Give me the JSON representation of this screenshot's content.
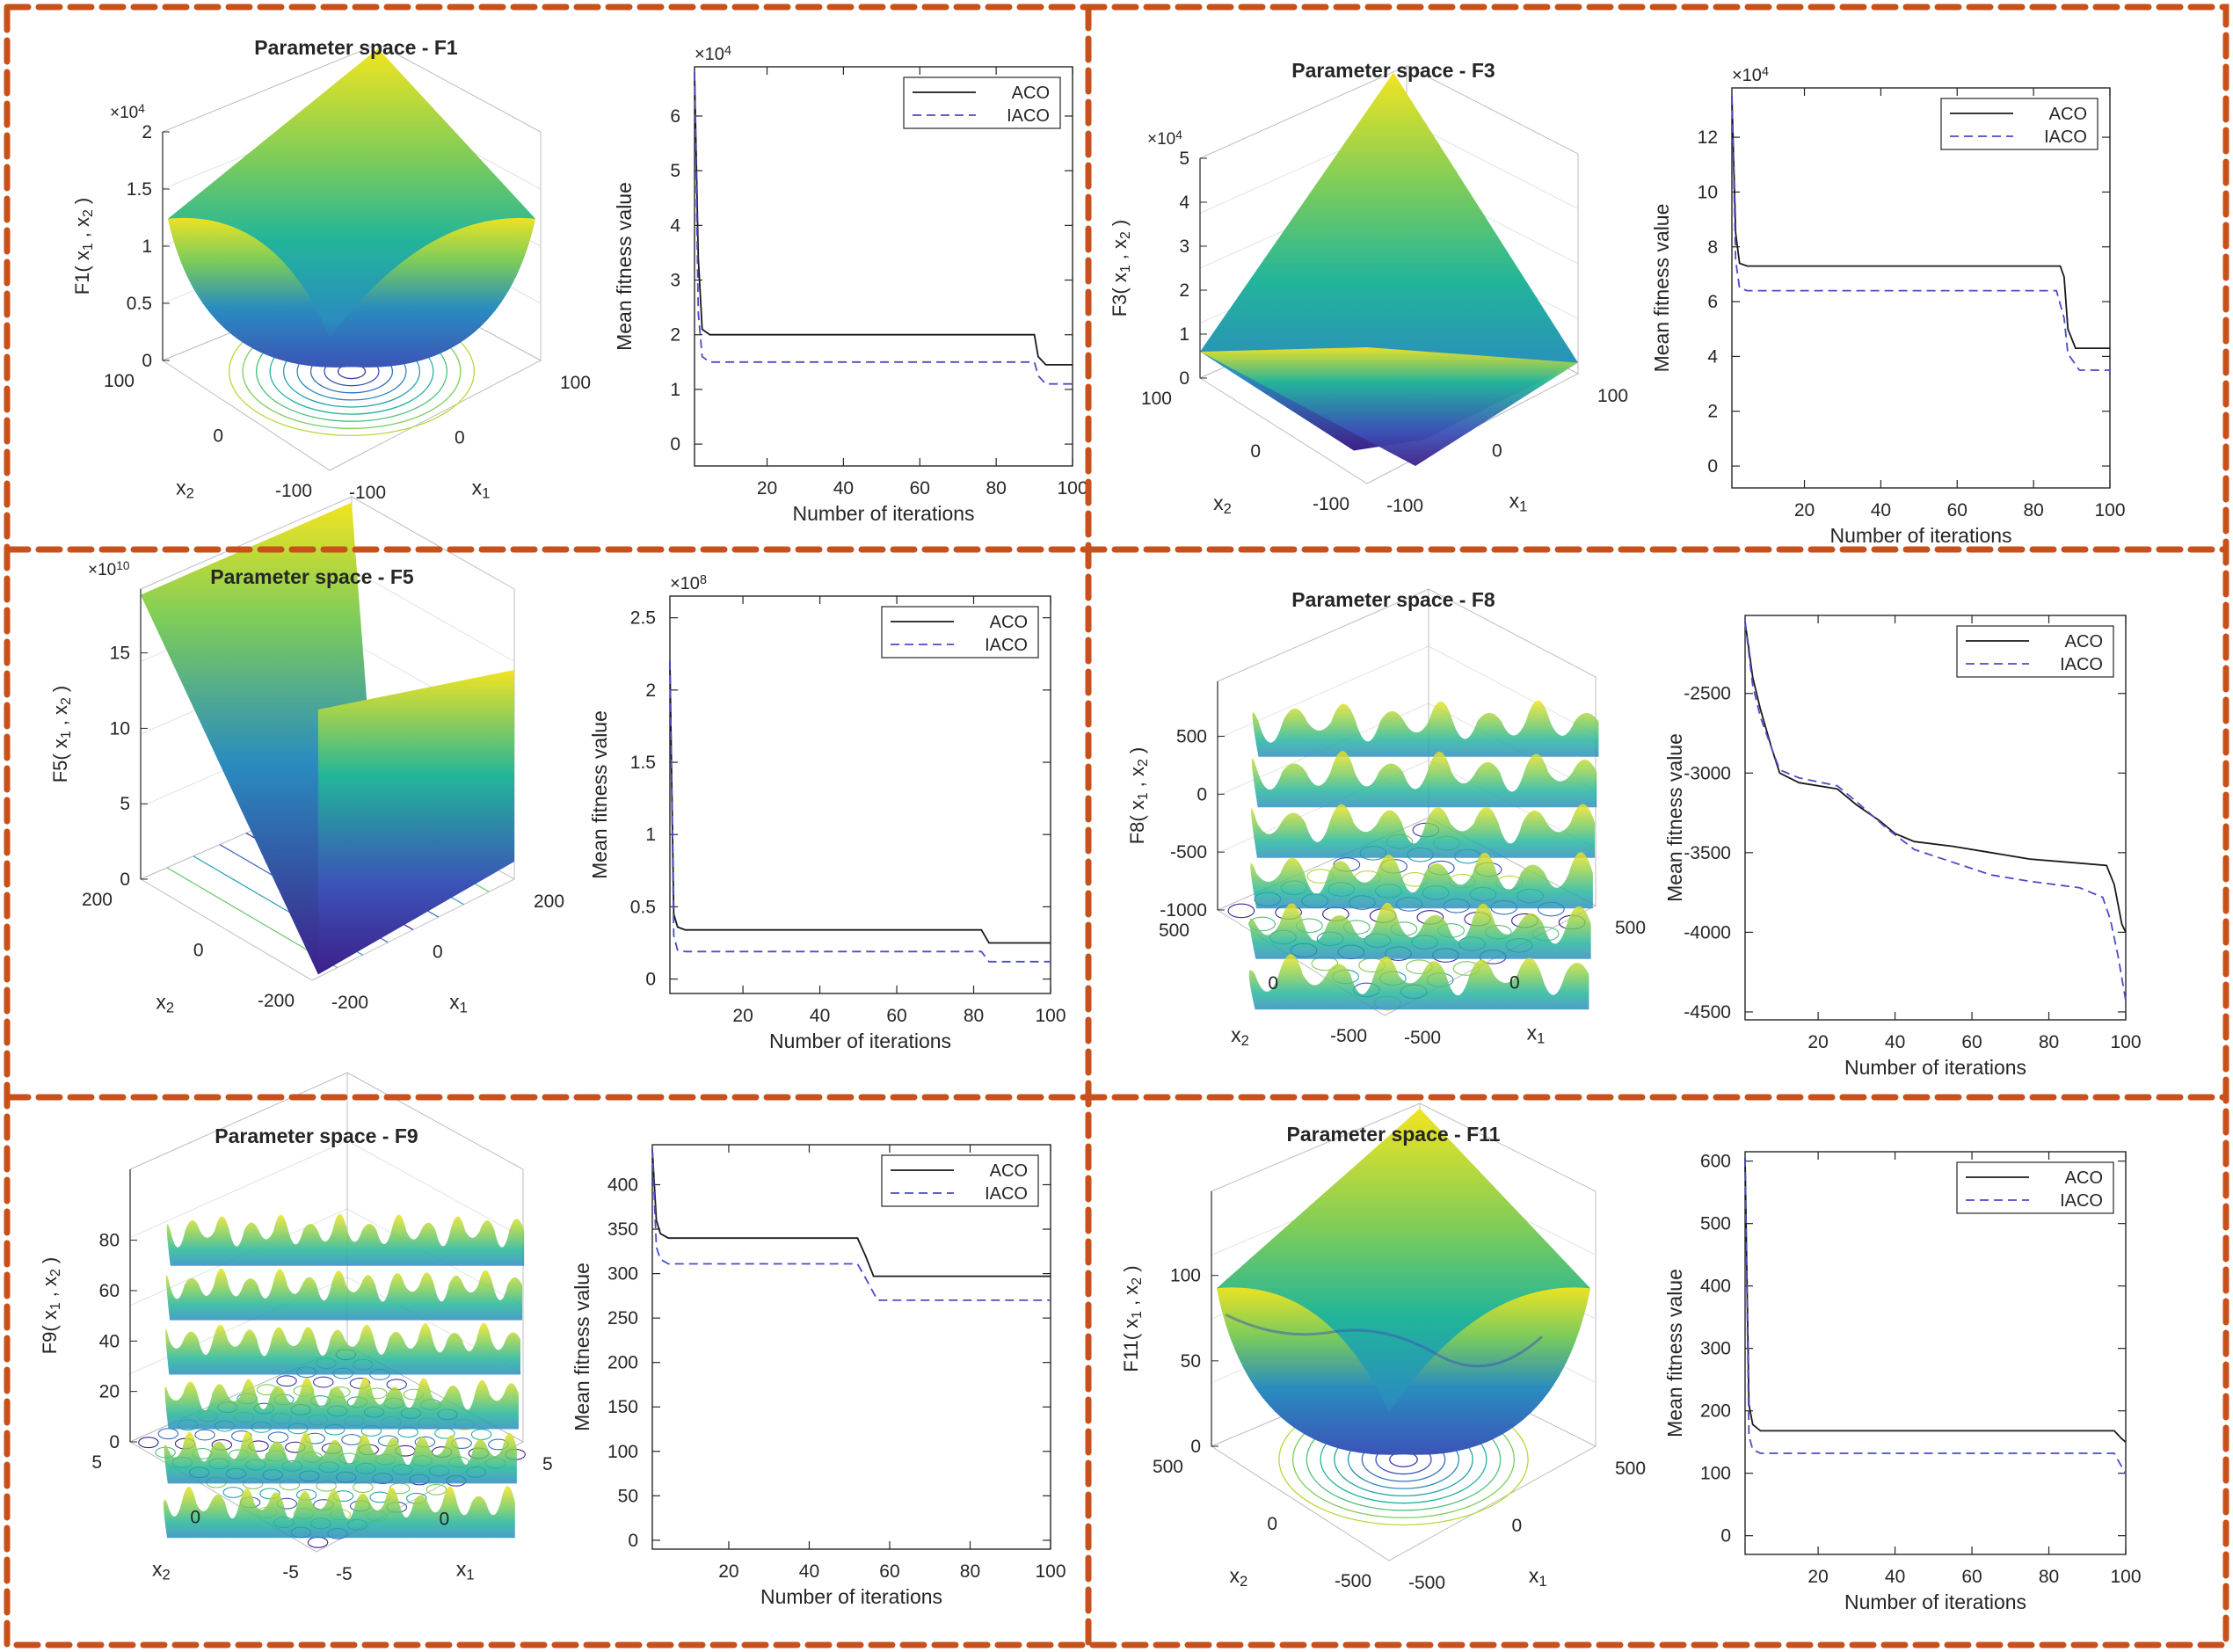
{
  "border_color": "#c8501a",
  "line_colors": {
    "aco": "#1a1a1a",
    "iaco": "#4b4bc8"
  },
  "surface_colormap": [
    "#3e1f8a",
    "#3b54b8",
    "#2a8cbf",
    "#22b59a",
    "#7ccc5a",
    "#f2e41f"
  ],
  "chart_data": [
    {
      "type": "surface",
      "function": "F1",
      "title": "Parameter space - F1",
      "zlabel": "F1( x<sub>1</sub> , x<sub>2</sub> )",
      "xlabel": "x1",
      "ylabel": "x2",
      "z_exponent": "×10^4",
      "z_ticks": [
        "0",
        "0.5",
        "1",
        "1.5",
        "2"
      ],
      "x_ticks": [
        "-100",
        "0",
        "100"
      ],
      "y_ticks": [
        "-100",
        "0",
        "100"
      ],
      "shape": "bowl"
    },
    {
      "type": "line",
      "function": "F1",
      "ylabel": "Mean fitness value",
      "xlabel": "Number of iterations",
      "y_exponent": "×10^4",
      "y_ticks": [
        0,
        1,
        2,
        3,
        4,
        5,
        6
      ],
      "ylim": [
        -0.4,
        6.9
      ],
      "x_ticks": [
        20,
        40,
        60,
        80,
        100
      ],
      "xlim": [
        1,
        100
      ],
      "legend": [
        "ACO",
        "IACO"
      ],
      "series": [
        {
          "name": "ACO",
          "style": "solid",
          "points": [
            [
              1,
              6.8
            ],
            [
              2,
              3.4
            ],
            [
              3,
              2.1
            ],
            [
              5,
              2.0
            ],
            [
              90,
              2.0
            ],
            [
              91,
              1.6
            ],
            [
              93,
              1.45
            ],
            [
              100,
              1.45
            ]
          ]
        },
        {
          "name": "IACO",
          "style": "dashed",
          "points": [
            [
              1,
              6.8
            ],
            [
              2,
              2.4
            ],
            [
              3,
              1.6
            ],
            [
              5,
              1.5
            ],
            [
              90,
              1.5
            ],
            [
              91,
              1.25
            ],
            [
              93,
              1.1
            ],
            [
              100,
              1.1
            ]
          ]
        }
      ]
    },
    {
      "type": "surface",
      "function": "F3",
      "title": "Parameter space - F3",
      "zlabel": "F3( x<sub>1</sub> , x<sub>2</sub> )",
      "xlabel": "x1",
      "ylabel": "x2",
      "z_exponent": "×10^4",
      "z_ticks": [
        "0",
        "1",
        "2",
        "3",
        "4",
        "5"
      ],
      "x_ticks": [
        "-100",
        "0",
        "100"
      ],
      "y_ticks": [
        "-100",
        "0",
        "100"
      ],
      "shape": "saddle"
    },
    {
      "type": "line",
      "function": "F3",
      "ylabel": "Mean fitness value",
      "xlabel": "Number of iterations",
      "y_exponent": "×10^4",
      "y_ticks": [
        0,
        2,
        4,
        6,
        8,
        10,
        12
      ],
      "ylim": [
        -0.8,
        13.8
      ],
      "x_ticks": [
        20,
        40,
        60,
        80,
        100
      ],
      "xlim": [
        1,
        100
      ],
      "legend": [
        "ACO",
        "IACO"
      ],
      "series": [
        {
          "name": "ACO",
          "style": "solid",
          "points": [
            [
              1,
              13.5
            ],
            [
              2,
              8.5
            ],
            [
              3,
              7.4
            ],
            [
              5,
              7.3
            ],
            [
              87,
              7.3
            ],
            [
              88,
              6.9
            ],
            [
              89,
              5.0
            ],
            [
              91,
              4.3
            ],
            [
              100,
              4.3
            ]
          ]
        },
        {
          "name": "IACO",
          "style": "dashed",
          "points": [
            [
              1,
              13.5
            ],
            [
              2,
              7.5
            ],
            [
              3,
              6.5
            ],
            [
              5,
              6.4
            ],
            [
              86,
              6.4
            ],
            [
              88,
              5.4
            ],
            [
              89,
              4.1
            ],
            [
              92,
              3.5
            ],
            [
              100,
              3.5
            ]
          ]
        }
      ]
    },
    {
      "type": "surface",
      "function": "F5",
      "title": "Parameter space - F5",
      "zlabel": "F5( x<sub>1</sub> , x<sub>2</sub> )",
      "xlabel": "x1",
      "ylabel": "x2",
      "z_exponent": "×10^10",
      "z_ticks": [
        "0",
        "5",
        "10",
        "15"
      ],
      "x_ticks": [
        "-200",
        "0",
        "200"
      ],
      "y_ticks": [
        "-200",
        "0",
        "200"
      ],
      "shape": "valley"
    },
    {
      "type": "line",
      "function": "F5",
      "ylabel": "Mean fitness value",
      "xlabel": "Number of iterations",
      "y_exponent": "×10^8",
      "y_ticks": [
        0,
        0.5,
        1,
        1.5,
        2,
        2.5
      ],
      "ylim": [
        -0.1,
        2.65
      ],
      "x_ticks": [
        20,
        40,
        60,
        80,
        100
      ],
      "xlim": [
        1,
        100
      ],
      "legend": [
        "ACO",
        "IACO"
      ],
      "series": [
        {
          "name": "ACO",
          "style": "solid",
          "points": [
            [
              1,
              2.2
            ],
            [
              2,
              0.45
            ],
            [
              3,
              0.36
            ],
            [
              5,
              0.34
            ],
            [
              82,
              0.34
            ],
            [
              84,
              0.25
            ],
            [
              100,
              0.25
            ]
          ]
        },
        {
          "name": "IACO",
          "style": "dashed",
          "points": [
            [
              1,
              2.2
            ],
            [
              2,
              0.3
            ],
            [
              3,
              0.2
            ],
            [
              5,
              0.19
            ],
            [
              82,
              0.19
            ],
            [
              84,
              0.12
            ],
            [
              100,
              0.12
            ]
          ]
        }
      ]
    },
    {
      "type": "line",
      "function": "F8",
      "ylabel": "Mean fitness value",
      "xlabel": "Number of iterations",
      "y_ticks": [
        -4500,
        -4000,
        -3500,
        -3000,
        -2500
      ],
      "ylim": [
        -4550,
        -2010
      ],
      "x_ticks": [
        20,
        40,
        60,
        80,
        100
      ],
      "xlim": [
        1,
        100
      ],
      "legend": [
        "ACO",
        "IACO"
      ],
      "series": [
        {
          "name": "ACO",
          "style": "solid",
          "points": [
            [
              1,
              -2050
            ],
            [
              3,
              -2400
            ],
            [
              5,
              -2600
            ],
            [
              8,
              -2850
            ],
            [
              10,
              -3000
            ],
            [
              15,
              -3060
            ],
            [
              25,
              -3100
            ],
            [
              30,
              -3200
            ],
            [
              36,
              -3300
            ],
            [
              40,
              -3380
            ],
            [
              45,
              -3430
            ],
            [
              55,
              -3460
            ],
            [
              65,
              -3500
            ],
            [
              75,
              -3540
            ],
            [
              85,
              -3560
            ],
            [
              95,
              -3580
            ],
            [
              97,
              -3700
            ],
            [
              99,
              -3950
            ],
            [
              100,
              -4000
            ]
          ]
        },
        {
          "name": "IACO",
          "style": "dashed",
          "points": [
            [
              1,
              -2050
            ],
            [
              3,
              -2450
            ],
            [
              5,
              -2650
            ],
            [
              8,
              -2850
            ],
            [
              10,
              -2980
            ],
            [
              15,
              -3030
            ],
            [
              25,
              -3080
            ],
            [
              30,
              -3180
            ],
            [
              38,
              -3350
            ],
            [
              45,
              -3480
            ],
            [
              55,
              -3560
            ],
            [
              65,
              -3640
            ],
            [
              75,
              -3680
            ],
            [
              88,
              -3720
            ],
            [
              94,
              -3780
            ],
            [
              96,
              -3920
            ],
            [
              98,
              -4150
            ],
            [
              100,
              -4430
            ]
          ]
        }
      ]
    },
    {
      "type": "surface",
      "function": "F8",
      "title": "Parameter space - F8",
      "zlabel": "F8( x<sub>1</sub> , x<sub>2</sub> )",
      "xlabel": "x1",
      "ylabel": "x2",
      "z_ticks": [
        "-1000",
        "-500",
        "0",
        "500"
      ],
      "x_ticks": [
        "-500",
        "0",
        "500"
      ],
      "y_ticks": [
        "-500",
        "0",
        "500"
      ],
      "shape": "schwefel"
    },
    {
      "type": "surface",
      "function": "F9",
      "title": "Parameter space - F9",
      "zlabel": "F9( x<sub>1</sub> , x<sub>2</sub> )",
      "xlabel": "x1",
      "ylabel": "x2",
      "z_ticks": [
        "0",
        "20",
        "40",
        "60",
        "80"
      ],
      "x_ticks": [
        "-5",
        "0",
        "5"
      ],
      "y_ticks": [
        "-5",
        "0",
        "5"
      ],
      "shape": "rastrigin"
    },
    {
      "type": "line",
      "function": "F9",
      "ylabel": "Mean fitness value",
      "xlabel": "Number of iterations",
      "y_ticks": [
        0,
        50,
        100,
        150,
        200,
        250,
        300,
        350,
        400
      ],
      "ylim": [
        -10,
        445
      ],
      "x_ticks": [
        20,
        40,
        60,
        80,
        100
      ],
      "xlim": [
        1,
        100
      ],
      "legend": [
        "ACO",
        "IACO"
      ],
      "series": [
        {
          "name": "ACO",
          "style": "solid",
          "points": [
            [
              1,
              440
            ],
            [
              2,
              360
            ],
            [
              3,
              345
            ],
            [
              5,
              340
            ],
            [
              52,
              340
            ],
            [
              54,
              320
            ],
            [
              56,
              297
            ],
            [
              100,
              297
            ]
          ]
        },
        {
          "name": "IACO",
          "style": "dashed",
          "points": [
            [
              1,
              440
            ],
            [
              2,
              330
            ],
            [
              3,
              316
            ],
            [
              5,
              311
            ],
            [
              52,
              311
            ],
            [
              54,
              295
            ],
            [
              57,
              270
            ],
            [
              100,
              270
            ]
          ]
        }
      ]
    },
    {
      "type": "surface",
      "function": "F11",
      "title": "Parameter space - F11",
      "zlabel": "F11( x<sub>1</sub> , x<sub>2</sub> )",
      "xlabel": "x1",
      "ylabel": "x2",
      "z_ticks": [
        "0",
        "50",
        "100"
      ],
      "x_ticks": [
        "-500",
        "0",
        "500"
      ],
      "y_ticks": [
        "-500",
        "0",
        "500"
      ],
      "shape": "griewank"
    },
    {
      "type": "line",
      "function": "F11",
      "ylabel": "Mean fitness value",
      "xlabel": "Number of iterations",
      "y_ticks": [
        0,
        100,
        200,
        300,
        400,
        500,
        600
      ],
      "ylim": [
        -30,
        615
      ],
      "x_ticks": [
        20,
        40,
        60,
        80,
        100
      ],
      "xlim": [
        1,
        100
      ],
      "legend": [
        "ACO",
        "IACO"
      ],
      "series": [
        {
          "name": "ACO",
          "style": "solid",
          "points": [
            [
              1,
              605
            ],
            [
              2,
              210
            ],
            [
              3,
              178
            ],
            [
              5,
              168
            ],
            [
              97,
              168
            ],
            [
              99,
              155
            ],
            [
              100,
              150
            ]
          ]
        },
        {
          "name": "IACO",
          "style": "dashed",
          "points": [
            [
              1,
              605
            ],
            [
              2,
              160
            ],
            [
              3,
              138
            ],
            [
              5,
              132
            ],
            [
              97,
              132
            ],
            [
              99,
              110
            ],
            [
              100,
              100
            ]
          ]
        }
      ]
    }
  ]
}
